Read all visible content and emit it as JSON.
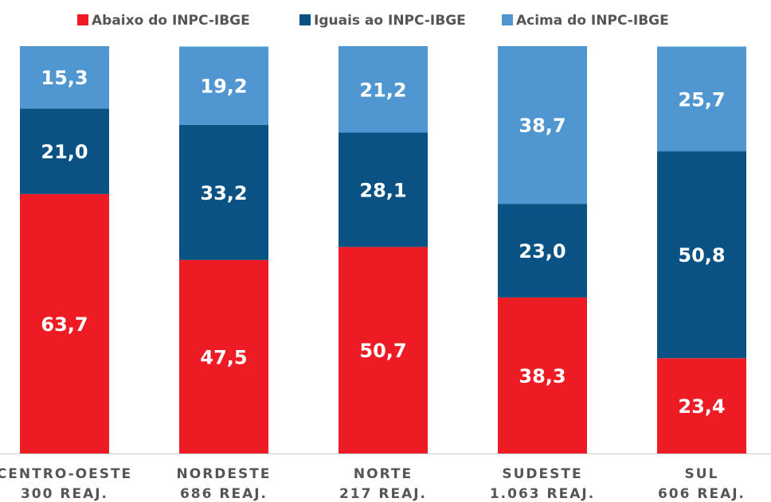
{
  "chart_data": {
    "type": "stacked_bar",
    "categories": [
      [
        "CENTRO-OESTE",
        "300 REAJ."
      ],
      [
        "NORDESTE",
        "686 REAJ."
      ],
      [
        "NORTE",
        "217 REAJ."
      ],
      [
        "SUDESTE",
        "1.063 REAJ."
      ],
      [
        "SUL",
        "606 REAJ."
      ]
    ],
    "series": [
      {
        "name": "Abaixo do INPC-IBGE",
        "color": "#ed1c24",
        "values": [
          63.7,
          47.5,
          50.7,
          38.3,
          23.4
        ],
        "value_labels": [
          "63,7",
          "47,5",
          "50,7",
          "38,3",
          "23,4"
        ]
      },
      {
        "name": "Iguais ao INPC-IBGE",
        "color": "#0b5284",
        "values": [
          21.0,
          33.2,
          28.1,
          23.0,
          50.8
        ],
        "value_labels": [
          "21,0",
          "33,2",
          "28,1",
          "23,0",
          "50,8"
        ]
      },
      {
        "name": "Acima do INPC-IBGE",
        "color": "#5097d2",
        "values": [
          15.3,
          19.2,
          21.2,
          38.7,
          25.7
        ],
        "value_labels": [
          "15,3",
          "19,2",
          "21,2",
          "38,7",
          "25,7"
        ]
      }
    ],
    "ylim": [
      0,
      100
    ]
  }
}
